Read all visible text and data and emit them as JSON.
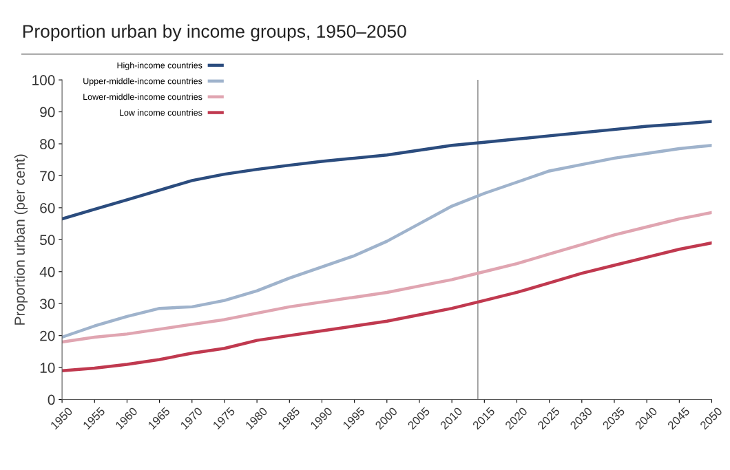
{
  "chart_data": {
    "type": "line",
    "title": "Proportion urban by income groups, 1950–2050",
    "ylabel": "Proportion urban (per cent)",
    "x": [
      1950,
      1955,
      1960,
      1965,
      1970,
      1975,
      1980,
      1985,
      1990,
      1995,
      2000,
      2005,
      2010,
      2015,
      2020,
      2025,
      2030,
      2035,
      2040,
      2045,
      2050
    ],
    "series": [
      {
        "name": "High-income countries",
        "color": "#2b4c7e",
        "values": [
          56.5,
          59.5,
          62.5,
          65.5,
          68.5,
          70.5,
          72,
          73.3,
          74.5,
          75.5,
          76.5,
          78,
          79.5,
          80.5,
          81.5,
          82.5,
          83.5,
          84.5,
          85.5,
          86.2,
          87
        ]
      },
      {
        "name": "Upper-middle-income countries",
        "color": "#9fb3cc",
        "values": [
          19.5,
          23,
          26,
          28.5,
          29,
          31,
          34,
          38,
          41.5,
          45,
          49.5,
          55,
          60.5,
          64.5,
          68,
          71.5,
          73.5,
          75.5,
          77,
          78.5,
          79.5
        ]
      },
      {
        "name": "Lower-middle-income countries",
        "color": "#e0a5b1",
        "values": [
          18,
          19.5,
          20.5,
          22,
          23.5,
          25,
          27,
          29,
          30.5,
          32,
          33.5,
          35.5,
          37.5,
          40,
          42.5,
          45.5,
          48.5,
          51.5,
          54,
          56.5,
          58.5
        ]
      },
      {
        "name": "Low income countries",
        "color": "#c0394f",
        "values": [
          9,
          9.8,
          11,
          12.5,
          14.5,
          16,
          18.5,
          20,
          21.5,
          23,
          24.5,
          26.5,
          28.5,
          31,
          33.5,
          36.5,
          39.5,
          42,
          44.5,
          47,
          49
        ]
      }
    ],
    "xlim": [
      1950,
      2050
    ],
    "xticks": [
      1950,
      1955,
      1960,
      1965,
      1970,
      1975,
      1980,
      1985,
      1990,
      1995,
      2000,
      2005,
      2010,
      2015,
      2020,
      2025,
      2030,
      2035,
      2040,
      2045,
      2050
    ],
    "ylim": [
      0,
      100
    ],
    "yticks": [
      0,
      10,
      20,
      30,
      40,
      50,
      60,
      70,
      80,
      90,
      100
    ],
    "ref_lines": [
      {
        "axis": "x",
        "value": 2014,
        "color": "#999999"
      }
    ],
    "grid": false,
    "legend": "top left",
    "marker": "none",
    "line_style": "solid"
  }
}
